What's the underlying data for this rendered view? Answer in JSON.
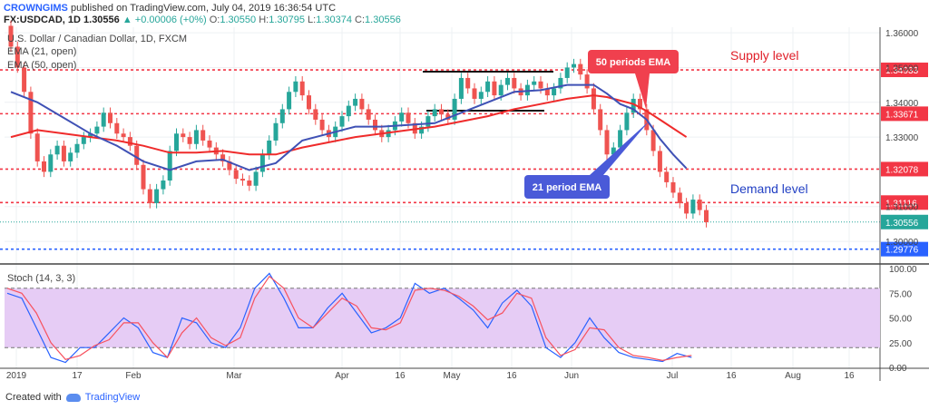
{
  "header": {
    "author": "CROWNGIMS",
    "published": "published on TradingView.com, July 04, 2019 16:36:54 UTC",
    "symbol": "FX:USDCAD, 1D",
    "last": "1.30556",
    "change": "▲ +0.00006 (+0%)",
    "o_label": "O:",
    "o": "1.30550",
    "h_label": "H:",
    "h": "1.30795",
    "l_label": "L:",
    "l": "1.30374",
    "c_label": "C:",
    "c": "1.30556"
  },
  "footer": {
    "created": "Created with",
    "brand": "TradingView"
  },
  "chart_data": [
    {
      "type": "candlestick",
      "title": "U.S. Dollar / Canadian Dollar, 1D, FXCM",
      "legend": [
        "EMA (21, open)",
        "EMA (50, open)"
      ],
      "y_ticks": [
        "1.36000",
        "1.35000",
        "1.34000",
        "1.33000",
        "1.31000",
        "1.30000"
      ],
      "ylim": [
        1.2948,
        1.3616
      ],
      "x_ticks": [
        "2019",
        "17",
        "Feb",
        "Mar",
        "Apr",
        "16",
        "May",
        "16",
        "Jun",
        "Jul",
        "16",
        "Aug",
        "16"
      ],
      "levels": [
        {
          "value": 1.34933,
          "label": "1.34933",
          "color": "#f23645"
        },
        {
          "value": 1.33671,
          "label": "1.33671",
          "color": "#f23645"
        },
        {
          "value": 1.32078,
          "label": "1.32078",
          "color": "#f23645"
        },
        {
          "value": 1.31116,
          "label": "1.31116",
          "color": "#f23645"
        },
        {
          "value": 1.30556,
          "label": "1.30556",
          "color": "#26a69a"
        },
        {
          "value": 1.29776,
          "label": "1.29776",
          "color": "#2962ff"
        }
      ],
      "annotations": {
        "supply": "Supply level",
        "demand": "Demand level",
        "ema50": "50 periods EMA",
        "ema21": "21 period EMA"
      },
      "candles": [
        [
          1.362,
          1.356
        ],
        [
          1.356,
          1.35
        ],
        [
          1.35,
          1.343
        ],
        [
          1.343,
          1.331
        ],
        [
          1.331,
          1.323
        ],
        [
          1.323,
          1.32
        ],
        [
          1.32,
          1.325
        ],
        [
          1.325,
          1.3275
        ],
        [
          1.3275,
          1.323
        ],
        [
          1.323,
          1.3255
        ],
        [
          1.3255,
          1.328
        ],
        [
          1.328,
          1.33
        ],
        [
          1.33,
          1.331
        ],
        [
          1.331,
          1.333
        ],
        [
          1.333,
          1.337
        ],
        [
          1.337,
          1.334
        ],
        [
          1.334,
          1.331
        ],
        [
          1.331,
          1.33
        ],
        [
          1.33,
          1.3275
        ],
        [
          1.3275,
          1.322
        ],
        [
          1.322,
          1.315
        ],
        [
          1.315,
          1.311
        ],
        [
          1.311,
          1.315
        ],
        [
          1.315,
          1.3175
        ],
        [
          1.3175,
          1.326
        ],
        [
          1.326,
          1.331
        ],
        [
          1.331,
          1.33
        ],
        [
          1.33,
          1.328
        ],
        [
          1.328,
          1.332
        ],
        [
          1.332,
          1.329
        ],
        [
          1.329,
          1.327
        ],
        [
          1.327,
          1.325
        ],
        [
          1.325,
          1.323
        ],
        [
          1.323,
          1.3205
        ],
        [
          1.3205,
          1.318
        ],
        [
          1.318,
          1.3175
        ],
        [
          1.3175,
          1.316
        ],
        [
          1.316,
          1.32
        ],
        [
          1.32,
          1.325
        ],
        [
          1.325,
          1.329
        ],
        [
          1.329,
          1.334
        ],
        [
          1.334,
          1.338
        ],
        [
          1.338,
          1.343
        ],
        [
          1.343,
          1.346
        ],
        [
          1.346,
          1.342
        ],
        [
          1.342,
          1.338
        ],
        [
          1.338,
          1.335
        ],
        [
          1.335,
          1.332
        ],
        [
          1.332,
          1.33
        ],
        [
          1.33,
          1.333
        ],
        [
          1.333,
          1.336
        ],
        [
          1.336,
          1.339
        ],
        [
          1.339,
          1.341
        ],
        [
          1.341,
          1.338
        ],
        [
          1.338,
          1.335
        ],
        [
          1.335,
          1.332
        ],
        [
          1.332,
          1.33
        ],
        [
          1.33,
          1.332
        ],
        [
          1.332,
          1.3345
        ],
        [
          1.3345,
          1.337
        ],
        [
          1.337,
          1.334
        ],
        [
          1.334,
          1.331
        ],
        [
          1.331,
          1.333
        ],
        [
          1.333,
          1.336
        ],
        [
          1.336,
          1.338
        ],
        [
          1.338,
          1.3365
        ],
        [
          1.3365,
          1.335
        ],
        [
          1.335,
          1.341
        ],
        [
          1.341,
          1.347
        ],
        [
          1.347,
          1.344
        ],
        [
          1.344,
          1.341
        ],
        [
          1.341,
          1.343
        ],
        [
          1.343,
          1.346
        ],
        [
          1.346,
          1.342
        ],
        [
          1.342,
          1.345
        ],
        [
          1.345,
          1.347
        ],
        [
          1.347,
          1.344
        ],
        [
          1.344,
          1.342
        ],
        [
          1.342,
          1.345
        ],
        [
          1.345,
          1.346
        ],
        [
          1.346,
          1.344
        ],
        [
          1.344,
          1.342
        ],
        [
          1.342,
          1.344
        ],
        [
          1.344,
          1.347
        ],
        [
          1.347,
          1.35
        ],
        [
          1.35,
          1.351
        ],
        [
          1.351,
          1.348
        ],
        [
          1.348,
          1.344
        ],
        [
          1.344,
          1.338
        ],
        [
          1.338,
          1.332
        ],
        [
          1.332,
          1.325
        ],
        [
          1.325,
          1.327
        ],
        [
          1.327,
          1.332
        ],
        [
          1.332,
          1.337
        ],
        [
          1.337,
          1.341
        ],
        [
          1.341,
          1.338
        ],
        [
          1.338,
          1.332
        ],
        [
          1.332,
          1.326
        ],
        [
          1.326,
          1.32
        ],
        [
          1.32,
          1.317
        ],
        [
          1.317,
          1.314
        ],
        [
          1.314,
          1.311
        ],
        [
          1.311,
          1.308
        ],
        [
          1.308,
          1.312
        ],
        [
          1.312,
          1.309
        ],
        [
          1.309,
          1.3055
        ]
      ],
      "ema21": [
        [
          0,
          1.343
        ],
        [
          4,
          1.34
        ],
        [
          8,
          1.3355
        ],
        [
          12,
          1.331
        ],
        [
          16,
          1.3275
        ],
        [
          20,
          1.323
        ],
        [
          24,
          1.3205
        ],
        [
          28,
          1.323
        ],
        [
          32,
          1.3235
        ],
        [
          36,
          1.3205
        ],
        [
          40,
          1.3225
        ],
        [
          44,
          1.329
        ],
        [
          48,
          1.331
        ],
        [
          52,
          1.333
        ],
        [
          56,
          1.333
        ],
        [
          60,
          1.3335
        ],
        [
          64,
          1.334
        ],
        [
          68,
          1.337
        ],
        [
          72,
          1.34
        ],
        [
          76,
          1.343
        ],
        [
          80,
          1.3435
        ],
        [
          84,
          1.345
        ],
        [
          88,
          1.345
        ],
        [
          90,
          1.3425
        ],
        [
          92,
          1.3395
        ],
        [
          94,
          1.338
        ],
        [
          96,
          1.335
        ],
        [
          98,
          1.3295
        ],
        [
          100,
          1.325
        ],
        [
          102,
          1.321
        ]
      ],
      "ema50": [
        [
          0,
          1.33
        ],
        [
          4,
          1.332
        ],
        [
          8,
          1.331
        ],
        [
          12,
          1.33
        ],
        [
          16,
          1.329
        ],
        [
          20,
          1.3275
        ],
        [
          24,
          1.3255
        ],
        [
          28,
          1.3255
        ],
        [
          32,
          1.326
        ],
        [
          36,
          1.325
        ],
        [
          40,
          1.325
        ],
        [
          44,
          1.327
        ],
        [
          48,
          1.3285
        ],
        [
          52,
          1.33
        ],
        [
          56,
          1.331
        ],
        [
          60,
          1.332
        ],
        [
          64,
          1.333
        ],
        [
          68,
          1.3345
        ],
        [
          72,
          1.336
        ],
        [
          76,
          1.338
        ],
        [
          80,
          1.3395
        ],
        [
          84,
          1.341
        ],
        [
          88,
          1.342
        ],
        [
          90,
          1.3415
        ],
        [
          92,
          1.3405
        ],
        [
          94,
          1.3395
        ],
        [
          96,
          1.3375
        ],
        [
          98,
          1.335
        ],
        [
          100,
          1.3325
        ],
        [
          102,
          1.33
        ]
      ]
    },
    {
      "type": "line",
      "title": "Stoch (14, 3, 3)",
      "y_ticks": [
        "100.00",
        "75.00",
        "50.00",
        "25.00",
        "0.00"
      ],
      "ylim": [
        0,
        100
      ],
      "bands": [
        20,
        80
      ],
      "series": [
        {
          "color": "#2962ff",
          "values": [
            [
              0,
              75
            ],
            [
              3,
              70
            ],
            [
              6,
              40
            ],
            [
              9,
              10
            ],
            [
              12,
              5
            ],
            [
              15,
              20
            ],
            [
              18,
              20
            ],
            [
              21,
              35
            ],
            [
              24,
              50
            ],
            [
              27,
              40
            ],
            [
              30,
              15
            ],
            [
              33,
              10
            ],
            [
              36,
              50
            ],
            [
              39,
              45
            ],
            [
              42,
              25
            ],
            [
              45,
              20
            ],
            [
              48,
              40
            ],
            [
              51,
              80
            ],
            [
              54,
              95
            ],
            [
              57,
              70
            ],
            [
              60,
              40
            ],
            [
              63,
              40
            ],
            [
              66,
              60
            ],
            [
              69,
              75
            ],
            [
              72,
              55
            ],
            [
              75,
              35
            ],
            [
              78,
              40
            ],
            [
              81,
              50
            ],
            [
              84,
              85
            ],
            [
              87,
              75
            ],
            [
              90,
              80
            ],
            [
              93,
              70
            ],
            [
              96,
              58
            ],
            [
              99,
              40
            ],
            [
              102,
              65
            ],
            [
              105,
              78
            ],
            [
              108,
              62
            ],
            [
              111,
              20
            ],
            [
              114,
              10
            ],
            [
              117,
              25
            ],
            [
              120,
              50
            ],
            [
              123,
              30
            ],
            [
              126,
              15
            ],
            [
              129,
              10
            ],
            [
              132,
              8
            ],
            [
              135,
              6
            ],
            [
              138,
              14
            ],
            [
              141,
              10
            ]
          ]
        },
        {
          "color": "#f7525f",
          "values": [
            [
              0,
              80
            ],
            [
              3,
              75
            ],
            [
              6,
              55
            ],
            [
              9,
              25
            ],
            [
              12,
              8
            ],
            [
              15,
              12
            ],
            [
              18,
              22
            ],
            [
              21,
              28
            ],
            [
              24,
              45
            ],
            [
              27,
              45
            ],
            [
              30,
              25
            ],
            [
              33,
              10
            ],
            [
              36,
              35
            ],
            [
              39,
              50
            ],
            [
              42,
              30
            ],
            [
              45,
              22
            ],
            [
              48,
              30
            ],
            [
              51,
              70
            ],
            [
              54,
              92
            ],
            [
              57,
              80
            ],
            [
              60,
              50
            ],
            [
              63,
              40
            ],
            [
              66,
              55
            ],
            [
              69,
              70
            ],
            [
              72,
              62
            ],
            [
              75,
              40
            ],
            [
              78,
              38
            ],
            [
              81,
              45
            ],
            [
              84,
              78
            ],
            [
              87,
              80
            ],
            [
              90,
              78
            ],
            [
              93,
              72
            ],
            [
              96,
              62
            ],
            [
              99,
              48
            ],
            [
              102,
              55
            ],
            [
              105,
              75
            ],
            [
              108,
              70
            ],
            [
              111,
              30
            ],
            [
              114,
              12
            ],
            [
              117,
              18
            ],
            [
              120,
              40
            ],
            [
              123,
              38
            ],
            [
              126,
              20
            ],
            [
              129,
              12
            ],
            [
              132,
              10
            ],
            [
              135,
              7
            ],
            [
              138,
              10
            ],
            [
              141,
              12
            ]
          ]
        }
      ]
    }
  ]
}
